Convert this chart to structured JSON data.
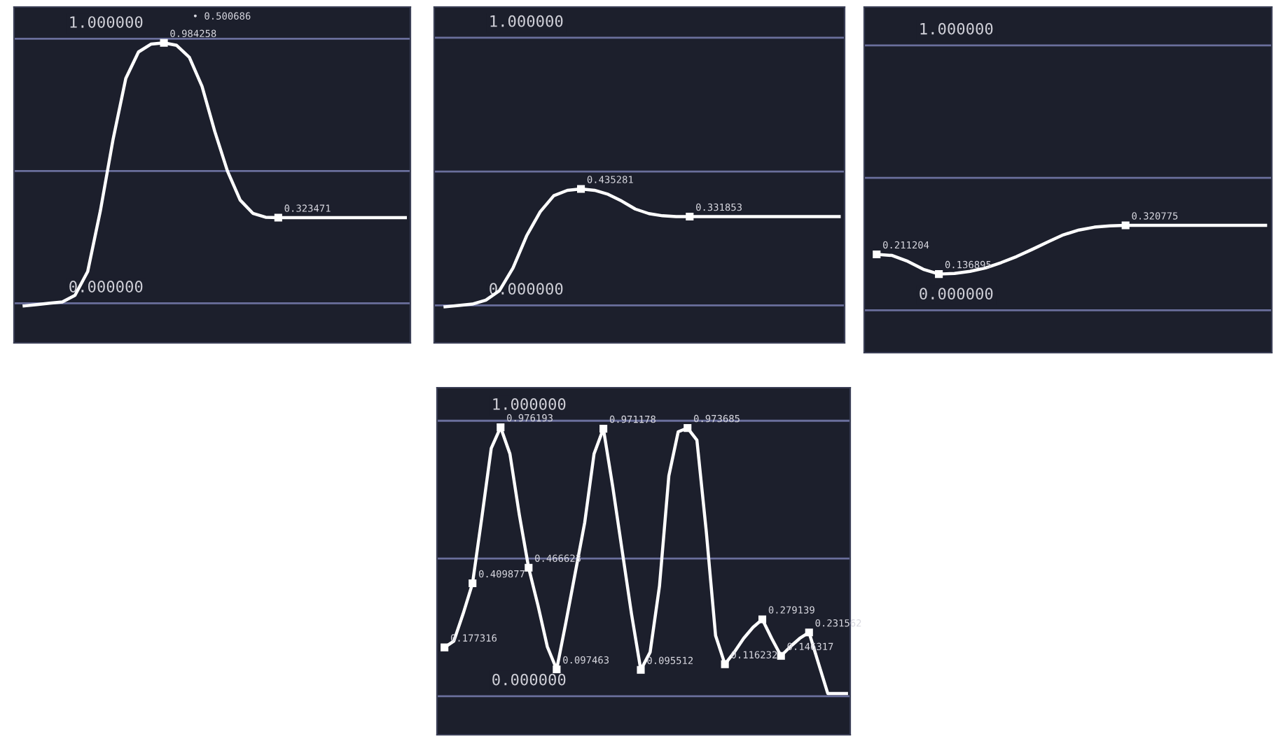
{
  "chart_data": [
    {
      "type": "line",
      "categories": [
        null,
        null,
        null,
        null,
        null,
        null,
        null,
        null,
        null,
        null,
        null,
        null,
        null,
        null,
        null,
        null,
        null,
        null,
        null,
        null,
        null,
        null,
        null,
        null,
        null,
        null,
        null,
        null,
        null,
        null,
        null
      ],
      "ylim": [
        -0.15,
        1.12
      ],
      "yticks": [
        {
          "value": 0,
          "label": "0.000000"
        },
        {
          "value": 0.5,
          "label": null
        },
        {
          "value": 1,
          "label": "1.000000"
        }
      ],
      "grid": "y",
      "tick_labels": "y",
      "annotations": [
        "• 0.500686"
      ],
      "series": [
        {
          "color": "#ffffff",
          "values": [
            -0.01,
            -0.005,
            0.0,
            0.005,
            0.03,
            0.12,
            0.35,
            0.62,
            0.85,
            0.95,
            0.98,
            0.984258,
            0.975,
            0.93,
            0.82,
            0.65,
            0.5,
            0.39,
            0.34,
            0.325,
            0.323471,
            0.323471,
            0.323471,
            0.323471,
            0.323471,
            0.323471,
            0.323471,
            0.323471,
            0.323471,
            0.323471,
            0.323471
          ],
          "value_labels": [
            null,
            null,
            null,
            null,
            null,
            null,
            null,
            null,
            null,
            null,
            null,
            "0.984258",
            null,
            null,
            null,
            null,
            null,
            null,
            null,
            null,
            "0.323471",
            null,
            null,
            null,
            null,
            null,
            null,
            null,
            null,
            null,
            null
          ]
        }
      ]
    },
    {
      "type": "line",
      "categories": [
        null,
        null,
        null,
        null,
        null,
        null,
        null,
        null,
        null,
        null,
        null,
        null,
        null,
        null,
        null,
        null,
        null,
        null,
        null,
        null,
        null,
        null,
        null,
        null,
        null,
        null,
        null,
        null,
        null,
        null
      ],
      "ylim": [
        -0.14,
        1.115
      ],
      "yticks": [
        {
          "value": 0,
          "label": "0.000000"
        },
        {
          "value": 0.5,
          "label": null
        },
        {
          "value": 1,
          "label": "1.000000"
        }
      ],
      "grid": "y",
      "tick_labels": "y",
      "series": [
        {
          "color": "#ffffff",
          "values": [
            -0.005,
            0.0,
            0.005,
            0.02,
            0.055,
            0.14,
            0.26,
            0.35,
            0.41,
            0.43,
            0.435281,
            0.43,
            0.415,
            0.39,
            0.36,
            0.343,
            0.335,
            0.332,
            0.331853,
            0.331853,
            0.331853,
            0.331853,
            0.331853,
            0.331853,
            0.331853,
            0.331853,
            0.331853,
            0.331853,
            0.331853,
            0.331853
          ],
          "value_labels": [
            null,
            null,
            null,
            null,
            null,
            null,
            null,
            null,
            null,
            null,
            "0.435281",
            null,
            null,
            null,
            null,
            null,
            null,
            null,
            "0.331853",
            null,
            null,
            null,
            null,
            null,
            null,
            null,
            null,
            null,
            null,
            null
          ]
        }
      ]
    },
    {
      "type": "line",
      "categories": [
        null,
        null,
        null,
        null,
        null,
        null,
        null,
        null,
        null,
        null,
        null,
        null,
        null,
        null,
        null,
        null,
        null,
        null,
        null,
        null,
        null,
        null,
        null,
        null,
        null,
        null
      ],
      "ylim": [
        -0.16,
        1.145
      ],
      "yticks": [
        {
          "value": 0,
          "label": "0.000000"
        },
        {
          "value": 0.5,
          "label": null
        },
        {
          "value": 1,
          "label": "1.000000"
        }
      ],
      "grid": "y",
      "tick_labels": "y",
      "series": [
        {
          "color": "#ffffff",
          "values": [
            0.211204,
            0.207,
            0.185,
            0.155,
            0.136895,
            0.139,
            0.147,
            0.16,
            0.18,
            0.203,
            0.23,
            0.258,
            0.285,
            0.303,
            0.314,
            0.319,
            0.320775,
            0.320775,
            0.320775,
            0.320775,
            0.320775,
            0.320775,
            0.320775,
            0.320775,
            0.320775,
            0.320775
          ],
          "value_labels": [
            "0.211204",
            null,
            null,
            null,
            "0.136895",
            null,
            null,
            null,
            null,
            null,
            null,
            null,
            null,
            null,
            null,
            null,
            "0.320775",
            null,
            null,
            null,
            null,
            null,
            null,
            null,
            null,
            null
          ]
        }
      ]
    },
    {
      "type": "line",
      "categories": [
        null,
        null,
        null,
        null,
        null,
        null,
        null,
        null,
        null,
        null,
        null,
        null,
        null,
        null,
        null,
        null,
        null,
        null,
        null,
        null,
        null,
        null,
        null,
        null,
        null,
        null,
        null,
        null,
        null,
        null,
        null,
        null,
        null,
        null,
        null,
        null,
        null,
        null,
        null,
        null,
        null,
        null,
        null,
        null
      ],
      "ylim": [
        -0.14,
        1.12
      ],
      "yticks": [
        {
          "value": 0,
          "label": "0.000000"
        },
        {
          "value": 0.5,
          "label": null
        },
        {
          "value": 1,
          "label": "1.000000"
        }
      ],
      "grid": "y",
      "tick_labels": "y",
      "series": [
        {
          "color": "#ffffff",
          "values": [
            0.177316,
            0.2,
            0.3,
            0.409877,
            0.65,
            0.9,
            0.976193,
            0.88,
            0.66,
            0.466623,
            0.33,
            0.18,
            0.097463,
            0.27,
            0.45,
            0.63,
            0.88,
            0.971178,
            0.76,
            0.53,
            0.3,
            0.095512,
            0.16,
            0.4,
            0.8,
            0.96,
            0.973685,
            0.93,
            0.6,
            0.22,
            0.116232,
            0.16,
            0.21,
            0.25,
            0.279139,
            0.21,
            0.146317,
            0.18,
            0.21,
            0.231562,
            0.12,
            0.01,
            0.01,
            0.01
          ],
          "value_labels": [
            "0.177316",
            null,
            null,
            "0.409877",
            null,
            null,
            "0.976193",
            null,
            null,
            "0.466623",
            null,
            null,
            "0.097463",
            null,
            null,
            null,
            null,
            "0.971178",
            null,
            null,
            null,
            "0.095512",
            null,
            null,
            null,
            null,
            "0.973685",
            null,
            null,
            null,
            "0.116232",
            null,
            null,
            null,
            "0.279139",
            null,
            "0.146317",
            null,
            null,
            "0.231562",
            null,
            null,
            null,
            null
          ]
        }
      ]
    }
  ]
}
